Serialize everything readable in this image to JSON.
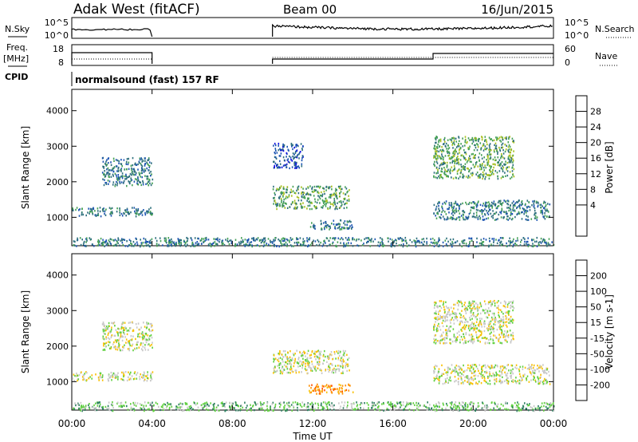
{
  "header": {
    "title": "Adak West (fitACF)",
    "beam": "Beam 00",
    "date": "16/Jun/2015"
  },
  "top_panels": {
    "nsky_label": "N.Sky",
    "nsearch_label": "N.Search",
    "log_ticks": [
      "10^5",
      "10^0"
    ],
    "freq_label_1": "Freq.",
    "freq_label_2": "[MHz]",
    "freq_ticks": [
      "18",
      "8"
    ],
    "nave_label": "Nave",
    "nave_ticks": [
      "60",
      "0"
    ],
    "cpid_label": "CPID",
    "cpid_text": "normalsound (fast) 157 RF"
  },
  "chart_data": [
    {
      "type": "heatmap",
      "variable": "power",
      "ylabel": "Slant Range [km]",
      "xlabel": "",
      "ylim": [
        200,
        4600
      ],
      "yticks": [
        1000,
        2000,
        3000,
        4000
      ],
      "xlim": [
        0,
        24
      ],
      "colorbar_label": "Power [dB]",
      "colorbar_ticks": [
        "28",
        "24",
        "20",
        "16",
        "12",
        "8",
        "4"
      ],
      "colors": [
        "#1010e0",
        "#1d55b2",
        "#2d6f7d",
        "#44a055",
        "#a8c020",
        "#f0c000",
        "#ff8a00",
        "#ff3000",
        "#e00000"
      ],
      "regions": [
        {
          "t": [
            0.0,
            4.0
          ],
          "range": [
            1050,
            1300
          ],
          "level": 2
        },
        {
          "t": [
            1.5,
            4.0
          ],
          "range": [
            1900,
            2700
          ],
          "level": 2
        },
        {
          "t": [
            10.0,
            13.8
          ],
          "range": [
            1250,
            1900
          ],
          "level": 3
        },
        {
          "t": [
            10.0,
            11.5
          ],
          "range": [
            2400,
            3100
          ],
          "level": 1
        },
        {
          "t": [
            11.8,
            14.0
          ],
          "range": [
            680,
            950
          ],
          "level": 2
        },
        {
          "t": [
            18.0,
            23.8
          ],
          "range": [
            950,
            1500
          ],
          "level": 2
        },
        {
          "t": [
            18.0,
            22.0
          ],
          "range": [
            2100,
            3300
          ],
          "level": 3
        },
        {
          "t": [
            0.0,
            24.0
          ],
          "range": [
            200,
            450
          ],
          "level": 2
        }
      ]
    },
    {
      "type": "heatmap",
      "variable": "velocity",
      "ylabel": "Slant Range [km]",
      "xlabel": "Time UT",
      "ylim": [
        200,
        4600
      ],
      "yticks": [
        1000,
        2000,
        3000,
        4000
      ],
      "xlim": [
        0,
        24
      ],
      "xticks": [
        "00:00",
        "04:00",
        "08:00",
        "12:00",
        "16:00",
        "20:00",
        "00:00"
      ],
      "colorbar_label": "Velocity [m s-1]",
      "colorbar_ticks": [
        "200",
        "100",
        "50",
        "15",
        "-15",
        "-50",
        "-100",
        "-200"
      ],
      "colors": [
        "#1010e0",
        "#2448b0",
        "#2d8060",
        "#60d040",
        "#c8c8c8",
        "#f8c000",
        "#ff9000",
        "#ff5000",
        "#e00000"
      ],
      "regions": [
        {
          "t": [
            0.0,
            4.0
          ],
          "range": [
            1050,
            1300
          ],
          "level": 4
        },
        {
          "t": [
            1.5,
            4.0
          ],
          "range": [
            1900,
            2700
          ],
          "level": 4
        },
        {
          "t": [
            10.0,
            13.8
          ],
          "range": [
            1250,
            1900
          ],
          "level": 4
        },
        {
          "t": [
            11.8,
            14.0
          ],
          "range": [
            680,
            950
          ],
          "level": 6
        },
        {
          "t": [
            18.0,
            23.8
          ],
          "range": [
            950,
            1500
          ],
          "level": 4
        },
        {
          "t": [
            18.0,
            22.0
          ],
          "range": [
            2100,
            3300
          ],
          "level": 4
        },
        {
          "t": [
            0.0,
            24.0
          ],
          "range": [
            200,
            450
          ],
          "level": 3
        }
      ]
    }
  ]
}
